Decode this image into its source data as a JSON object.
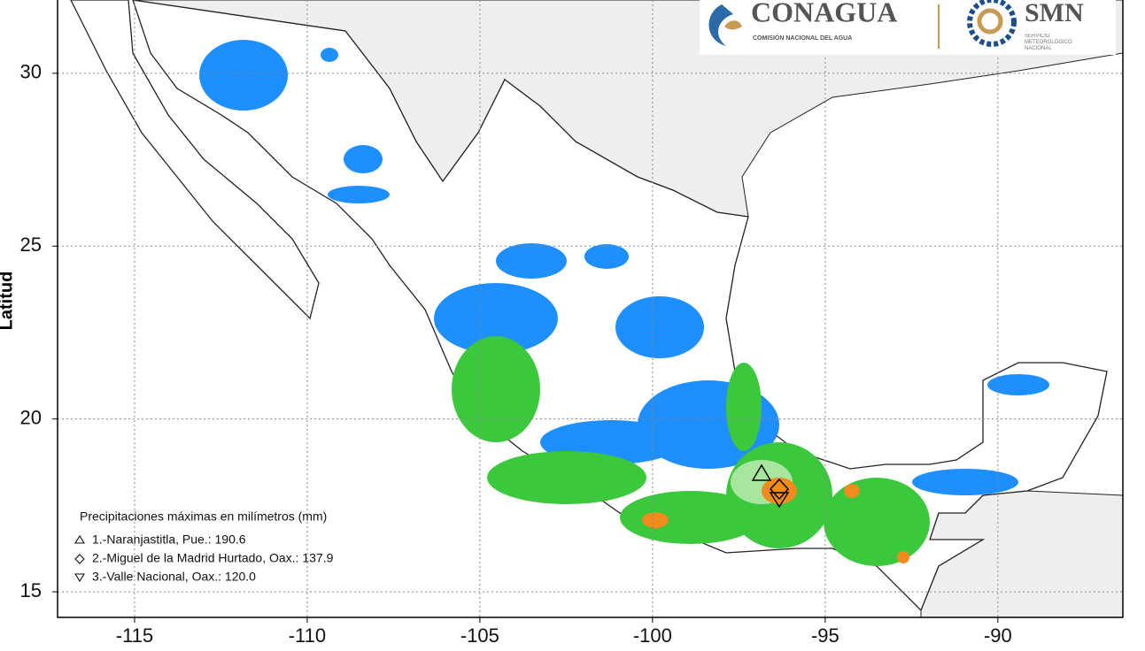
{
  "logos": {
    "conagua": "CONAGUA",
    "conagua_subtitle": "COMISIÓN NACIONAL DEL AGUA",
    "smn": "SMN",
    "smn_subtitle": "SERVICIO METEOROLÓGICO NACIONAL"
  },
  "map": {
    "ylabel": "Latitud",
    "xlim": [
      -117.23,
      -86.38
    ],
    "ylim": [
      14.26,
      32.12
    ],
    "xticks": [
      -115,
      -110,
      -105,
      -100,
      -95,
      -90
    ],
    "yticks": [
      15,
      20,
      25,
      30
    ],
    "grid": true
  },
  "legend": {
    "title": "Precipitaciones máximas en milímetros (mm)",
    "entries": [
      "1.-Naranjastitla, Pue.: 190.6",
      "2.-Miguel de la Madrid Hurtado, Oax.: 137.9",
      "3.-Valle Nacional, Oax.: 120.0"
    ]
  }
}
